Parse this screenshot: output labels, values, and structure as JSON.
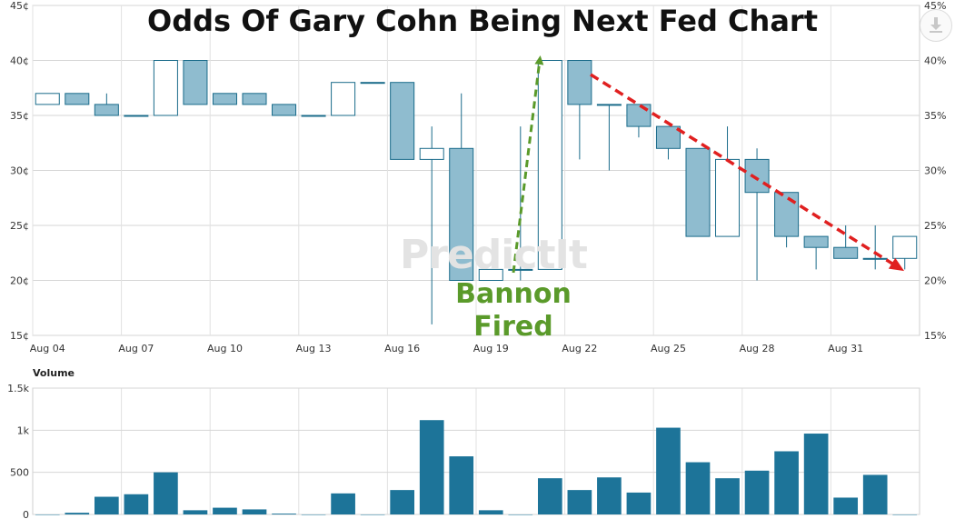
{
  "chart_data": [
    {
      "type": "candlestick",
      "title": "Odds Of Gary Cohn Being Next Fed Chart",
      "y_unit_left": "¢",
      "y_unit_right": "%",
      "ylim": [
        15,
        45
      ],
      "yticks": [
        "15¢",
        "20¢",
        "25¢",
        "30¢",
        "35¢",
        "40¢",
        "45¢"
      ],
      "yticks_right": [
        "15%",
        "20%",
        "25%",
        "30%",
        "35%",
        "40%",
        "45%"
      ],
      "xtick_labels": [
        "Aug 04",
        "Aug 07",
        "Aug 10",
        "Aug 13",
        "Aug 16",
        "Aug 19",
        "Aug 22",
        "Aug 25",
        "Aug 28",
        "Aug 31"
      ],
      "candles": [
        {
          "open": 36,
          "close": 37,
          "high": 37,
          "low": 36
        },
        {
          "open": 37,
          "close": 36,
          "high": 37,
          "low": 36
        },
        {
          "open": 36,
          "close": 35,
          "high": 37,
          "low": 35
        },
        {
          "open": 35,
          "close": 35,
          "high": 35,
          "low": 35
        },
        {
          "open": 35,
          "close": 40,
          "high": 40,
          "low": 35
        },
        {
          "open": 40,
          "close": 36,
          "high": 40,
          "low": 36
        },
        {
          "open": 37,
          "close": 36,
          "high": 37,
          "low": 36
        },
        {
          "open": 37,
          "close": 36,
          "high": 37,
          "low": 36
        },
        {
          "open": 36,
          "close": 35,
          "high": 36,
          "low": 35
        },
        {
          "open": 35,
          "close": 35,
          "high": 35,
          "low": 35
        },
        {
          "open": 35,
          "close": 38,
          "high": 38,
          "low": 35
        },
        {
          "open": 38,
          "close": 38,
          "high": 38,
          "low": 38
        },
        {
          "open": 38,
          "close": 31,
          "high": 38,
          "low": 31
        },
        {
          "open": 31,
          "close": 32,
          "high": 34,
          "low": 16
        },
        {
          "open": 32,
          "close": 20,
          "high": 37,
          "low": 20
        },
        {
          "open": 20,
          "close": 21,
          "high": 21,
          "low": 20
        },
        {
          "open": 21,
          "close": 21,
          "high": 34,
          "low": 20
        },
        {
          "open": 21,
          "close": 40,
          "high": 40,
          "low": 21
        },
        {
          "open": 40,
          "close": 36,
          "high": 40,
          "low": 31
        },
        {
          "open": 36,
          "close": 36,
          "high": 36,
          "low": 30
        },
        {
          "open": 36,
          "close": 34,
          "high": 36,
          "low": 33
        },
        {
          "open": 34,
          "close": 32,
          "high": 34,
          "low": 31
        },
        {
          "open": 32,
          "close": 24,
          "high": 32,
          "low": 24
        },
        {
          "open": 24,
          "close": 31,
          "high": 34,
          "low": 24
        },
        {
          "open": 31,
          "close": 28,
          "high": 32,
          "low": 20
        },
        {
          "open": 28,
          "close": 24,
          "high": 28,
          "low": 23
        },
        {
          "open": 24,
          "close": 23,
          "high": 24,
          "low": 21
        },
        {
          "open": 23,
          "close": 22,
          "high": 25,
          "low": 22
        },
        {
          "open": 22,
          "close": 22,
          "high": 25,
          "low": 21
        },
        {
          "open": 22,
          "close": 24,
          "high": 24,
          "low": 21
        }
      ],
      "colors": {
        "down": "#8fbccf",
        "up": "#ffffff",
        "stroke": "#1a6b8a"
      }
    },
    {
      "type": "bar",
      "label": "Volume",
      "ylim": [
        0,
        1500
      ],
      "yticks": [
        "0",
        "500",
        "1k",
        "1.5k"
      ],
      "values": [
        0,
        20,
        210,
        240,
        500,
        50,
        80,
        60,
        10,
        0,
        250,
        0,
        290,
        1120,
        690,
        50,
        0,
        430,
        290,
        440,
        260,
        1030,
        620,
        430,
        520,
        750,
        960,
        200,
        470,
        0
      ],
      "color": "#1d7499"
    }
  ],
  "annotations": {
    "bannon_line1": "Bannon",
    "bannon_line2": "Fired",
    "green": "#5a9a2a",
    "red": "#e02020"
  },
  "watermark": "PredictIt",
  "download_icon": "download-icon"
}
